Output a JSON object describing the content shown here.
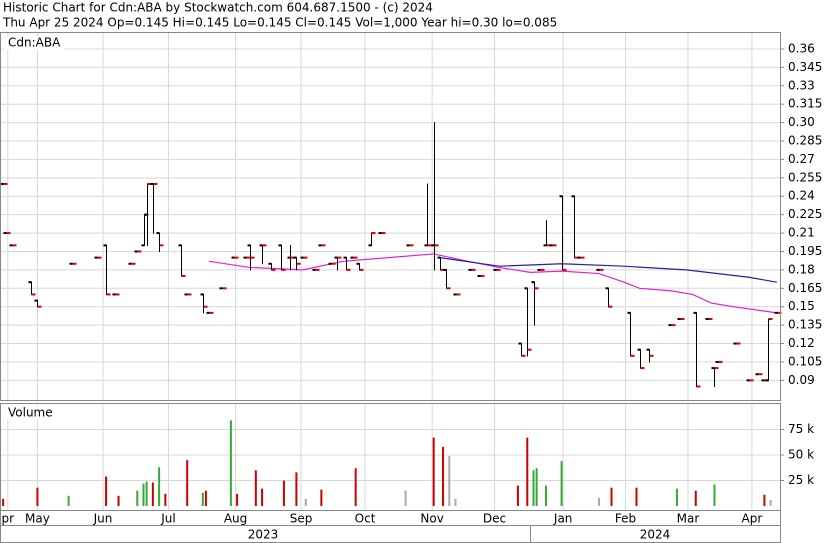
{
  "header": [
    "Historic Chart for Cdn:ABA by Stockwatch.com 604.687.1500 - (c) 2024",
    "Thu Apr 25 2024  Op=0.145  Hi=0.145  Lo=0.145  Cl=0.145  Vol=1,000  Year hi=0.30  lo=0.085"
  ],
  "years": [
    "2023",
    "2024"
  ],
  "chart_data": [
    {
      "type": "ohlc",
      "title": "Cdn:ABA",
      "grid": true,
      "xlim": [
        0,
        250
      ],
      "ylim": [
        0.074,
        0.373
      ],
      "yticks": [
        0.36,
        0.345,
        0.33,
        0.315,
        {
          "value": 0.3,
          "label": "0.30"
        },
        0.285,
        0.27,
        0.255,
        0.24,
        0.225,
        0.21,
        0.195,
        0.18,
        0.165,
        0.15,
        0.135,
        0.12,
        0.105,
        0.09
      ],
      "line_color": "#000000",
      "close_color": "#dd0000",
      "x": [
        1,
        2,
        4,
        10,
        12,
        23,
        31,
        34,
        37,
        42,
        44,
        46,
        47,
        49,
        51,
        58,
        60,
        65,
        67,
        71,
        75,
        79,
        80,
        84,
        87,
        90,
        93,
        95,
        97,
        101,
        103,
        106,
        108,
        111,
        113,
        115,
        119,
        122,
        131,
        137,
        139,
        141,
        143,
        146,
        151,
        154,
        159,
        167,
        169,
        171,
        173,
        175,
        177,
        180,
        184,
        186,
        192,
        195,
        202,
        205,
        208,
        215,
        218,
        223,
        227,
        229,
        230,
        236,
        240,
        243,
        245,
        246,
        249
      ],
      "open": [
        0.25,
        0.21,
        0.2,
        0.17,
        0.155,
        0.185,
        0.19,
        0.2,
        0.16,
        0.185,
        0.195,
        0.2,
        0.225,
        0.25,
        0.21,
        0.2,
        0.16,
        0.16,
        0.145,
        0.165,
        0.19,
        0.19,
        0.2,
        0.2,
        0.185,
        0.2,
        0.19,
        0.19,
        0.19,
        0.18,
        0.2,
        0.185,
        0.19,
        0.19,
        0.19,
        0.185,
        0.2,
        0.21,
        0.2,
        0.2,
        0.2,
        0.19,
        0.18,
        0.16,
        0.18,
        0.175,
        0.18,
        0.12,
        0.165,
        0.17,
        0.18,
        0.2,
        0.2,
        0.24,
        0.24,
        0.19,
        0.18,
        0.165,
        0.145,
        0.115,
        0.115,
        0.135,
        0.14,
        0.145,
        0.14,
        0.1,
        0.105,
        0.12,
        0.09,
        0.095,
        0.09,
        0.09,
        0.145
      ],
      "high": [
        0.25,
        0.21,
        0.2,
        0.17,
        0.155,
        0.185,
        0.19,
        0.2,
        0.16,
        0.185,
        0.195,
        0.225,
        0.25,
        0.25,
        0.21,
        0.2,
        0.16,
        0.16,
        0.145,
        0.165,
        0.19,
        0.19,
        0.2,
        0.2,
        0.185,
        0.2,
        0.2,
        0.19,
        0.19,
        0.18,
        0.2,
        0.185,
        0.19,
        0.19,
        0.19,
        0.185,
        0.21,
        0.21,
        0.2,
        0.25,
        0.3,
        0.19,
        0.18,
        0.16,
        0.18,
        0.175,
        0.18,
        0.12,
        0.165,
        0.17,
        0.18,
        0.22,
        0.2,
        0.24,
        0.24,
        0.19,
        0.18,
        0.165,
        0.145,
        0.115,
        0.115,
        0.135,
        0.14,
        0.145,
        0.14,
        0.1,
        0.105,
        0.12,
        0.09,
        0.095,
        0.09,
        0.14,
        0.145
      ],
      "low": [
        0.25,
        0.21,
        0.2,
        0.16,
        0.15,
        0.185,
        0.19,
        0.16,
        0.16,
        0.185,
        0.195,
        0.2,
        0.2,
        0.21,
        0.195,
        0.175,
        0.16,
        0.145,
        0.145,
        0.165,
        0.19,
        0.19,
        0.18,
        0.185,
        0.18,
        0.18,
        0.18,
        0.18,
        0.19,
        0.18,
        0.2,
        0.185,
        0.18,
        0.18,
        0.19,
        0.18,
        0.2,
        0.21,
        0.2,
        0.2,
        0.18,
        0.18,
        0.165,
        0.16,
        0.18,
        0.175,
        0.18,
        0.11,
        0.11,
        0.135,
        0.18,
        0.2,
        0.2,
        0.18,
        0.19,
        0.19,
        0.18,
        0.15,
        0.11,
        0.1,
        0.105,
        0.135,
        0.14,
        0.085,
        0.14,
        0.085,
        0.105,
        0.12,
        0.09,
        0.095,
        0.09,
        0.09,
        0.145
      ],
      "close": [
        0.25,
        0.21,
        0.2,
        0.16,
        0.15,
        0.185,
        0.19,
        0.16,
        0.16,
        0.185,
        0.195,
        0.225,
        0.25,
        0.25,
        0.2,
        0.175,
        0.16,
        0.15,
        0.145,
        0.165,
        0.19,
        0.19,
        0.19,
        0.2,
        0.18,
        0.18,
        0.19,
        0.185,
        0.19,
        0.18,
        0.2,
        0.185,
        0.19,
        0.18,
        0.19,
        0.18,
        0.21,
        0.21,
        0.2,
        0.2,
        0.2,
        0.18,
        0.165,
        0.16,
        0.18,
        0.175,
        0.18,
        0.11,
        0.115,
        0.165,
        0.18,
        0.2,
        0.2,
        0.18,
        0.19,
        0.19,
        0.18,
        0.15,
        0.11,
        0.1,
        0.11,
        0.135,
        0.14,
        0.085,
        0.14,
        0.1,
        0.105,
        0.12,
        0.09,
        0.095,
        0.09,
        0.14,
        0.145
      ],
      "moving_averages": [
        {
          "color": "#dd22dd",
          "x": [
            67,
            80,
            97,
            110,
            139,
            150,
            160,
            170,
            180,
            192,
            200,
            205,
            215,
            222,
            228,
            235,
            249
          ],
          "values": [
            0.187,
            0.182,
            0.18,
            0.187,
            0.193,
            0.187,
            0.182,
            0.178,
            0.179,
            0.177,
            0.17,
            0.165,
            0.163,
            0.16,
            0.153,
            0.15,
            0.145
          ]
        },
        {
          "color": "#2222aa",
          "x": [
            141,
            160,
            180,
            200,
            220,
            240,
            249
          ],
          "values": [
            0.19,
            0.183,
            0.185,
            0.183,
            0.18,
            0.174,
            0.17
          ]
        }
      ]
    },
    {
      "type": "bar",
      "title": "Volume",
      "grid": true,
      "xlim": [
        0,
        250
      ],
      "ylim": [
        0,
        100000
      ],
      "yticks": [
        {
          "value": 75000,
          "label": "75 k"
        },
        {
          "value": 50000,
          "label": "50 k"
        },
        {
          "value": 25000,
          "label": "25 k"
        }
      ],
      "xticks": [
        {
          "value": 2.5,
          "label": "pr"
        },
        {
          "value": 12,
          "label": "May"
        },
        {
          "value": 33,
          "label": "Jun"
        },
        {
          "value": 54,
          "label": "Jul"
        },
        {
          "value": 75.5,
          "label": "Aug"
        },
        {
          "value": 96.5,
          "label": "Sep"
        },
        {
          "value": 117,
          "label": "Oct"
        },
        {
          "value": 138.5,
          "label": "Nov"
        },
        {
          "value": 158.5,
          "label": "Dec"
        },
        {
          "value": 180.5,
          "label": "Jan"
        },
        {
          "value": 200.5,
          "label": "Feb"
        },
        {
          "value": 220.5,
          "label": "Mar"
        },
        {
          "value": 241,
          "label": "Apr"
        }
      ],
      "x": [
        1,
        12,
        22,
        34,
        38,
        44,
        46,
        47,
        49,
        51,
        53,
        60,
        65,
        66,
        74,
        76,
        82,
        84,
        91,
        95,
        98,
        103,
        114,
        130,
        139,
        142,
        144,
        146,
        166,
        169,
        171,
        172,
        175,
        180,
        192,
        196,
        204,
        217,
        223,
        229,
        245,
        247
      ],
      "values": [
        7000,
        18000,
        10000,
        29000,
        10000,
        15000,
        22000,
        24000,
        23000,
        38000,
        12000,
        45000,
        13000,
        15000,
        84000,
        12000,
        35000,
        17000,
        25000,
        33000,
        7000,
        16000,
        37000,
        15000,
        67000,
        58000,
        49000,
        7000,
        20000,
        67000,
        35000,
        37000,
        20000,
        44000,
        8000,
        18000,
        18000,
        17000,
        15000,
        21000,
        11000,
        6000
      ],
      "colors": [
        "#cc0000",
        "#cc0000",
        "#33aa33",
        "#cc0000",
        "#cc0000",
        "#33aa33",
        "#33aa33",
        "#33aa33",
        "#cc0000",
        "#33aa33",
        "#cc0000",
        "#cc0000",
        "#33aa33",
        "#cc0000",
        "#33aa33",
        "#cc0000",
        "#cc0000",
        "#cc0000",
        "#cc0000",
        "#cc0000",
        "#aaaaaa",
        "#cc0000",
        "#cc0000",
        "#aaaaaa",
        "#cc0000",
        "#cc0000",
        "#aaaaaa",
        "#aaaaaa",
        "#cc0000",
        "#cc0000",
        "#33aa33",
        "#33aa33",
        "#33aa33",
        "#33aa33",
        "#aaaaaa",
        "#cc0000",
        "#cc0000",
        "#33aa33",
        "#cc0000",
        "#33aa33",
        "#cc0000",
        "#aaaaaa"
      ]
    }
  ]
}
